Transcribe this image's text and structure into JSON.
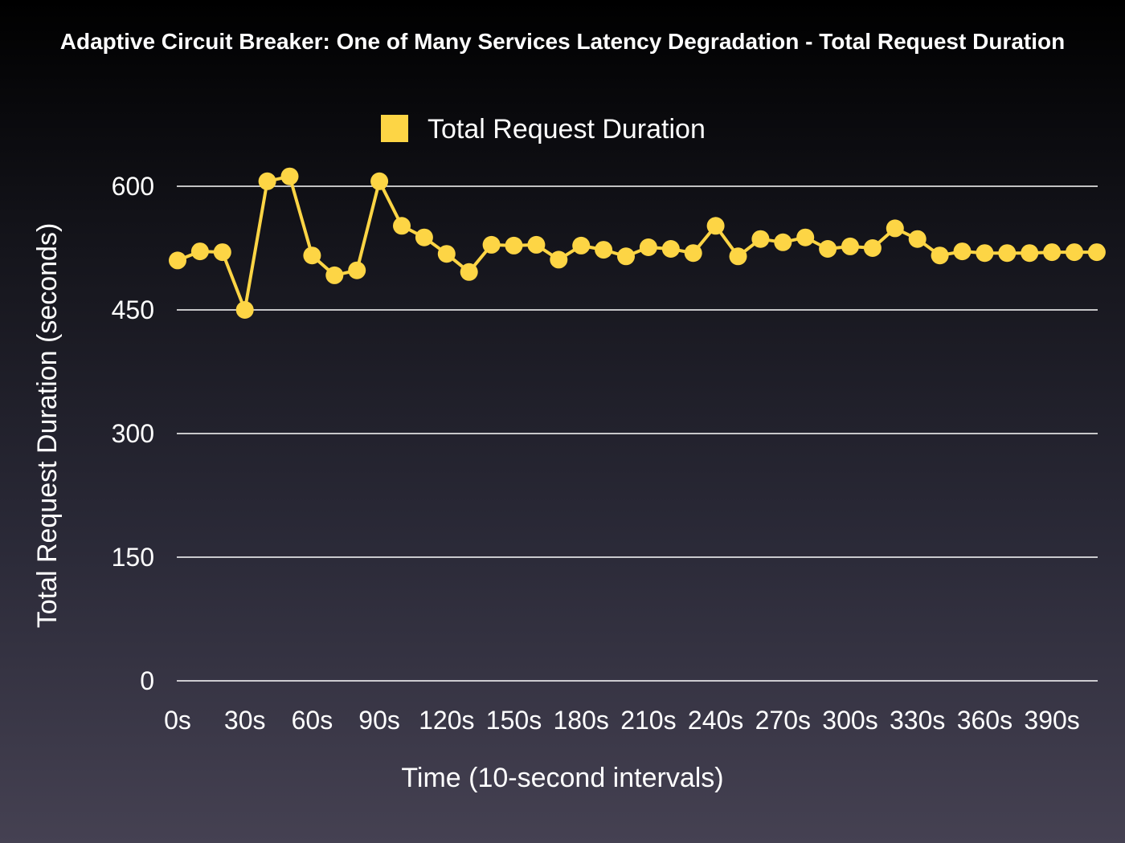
{
  "chart_data": {
    "type": "line",
    "title": "Adaptive Circuit Breaker: One of Many Services Latency Degradation - Total Request Duration",
    "xlabel": "Time (10-second intervals)",
    "ylabel": "Total Request Duration (seconds)",
    "ylim": [
      0,
      600
    ],
    "yticks": [
      "0",
      "150",
      "300",
      "450",
      "600"
    ],
    "ytick_values": [
      0,
      150,
      300,
      450,
      600
    ],
    "x": [
      "0s",
      "10s",
      "20s",
      "30s",
      "40s",
      "50s",
      "60s",
      "70s",
      "80s",
      "90s",
      "100s",
      "110s",
      "120s",
      "130s",
      "140s",
      "150s",
      "160s",
      "170s",
      "180s",
      "190s",
      "200s",
      "210s",
      "220s",
      "230s",
      "240s",
      "250s",
      "260s",
      "270s",
      "280s",
      "290s",
      "300s",
      "310s",
      "320s",
      "330s",
      "340s",
      "350s",
      "360s",
      "370s",
      "380s",
      "390s",
      "400s",
      "410s"
    ],
    "xtick_labels": [
      "0s",
      "30s",
      "60s",
      "90s",
      "120s",
      "150s",
      "180s",
      "210s",
      "240s",
      "270s",
      "300s",
      "330s",
      "360s",
      "390s"
    ],
    "xtick_indices": [
      0,
      3,
      6,
      9,
      12,
      15,
      18,
      21,
      24,
      27,
      30,
      33,
      36,
      39
    ],
    "grid": true,
    "legend_position": "top-center",
    "series": [
      {
        "name": "Total Request Duration",
        "color": "#fdd545",
        "values": [
          510,
          521,
          520,
          450,
          606,
          612,
          516,
          492,
          498,
          606,
          552,
          538,
          518,
          496,
          529,
          528,
          529,
          511,
          528,
          523,
          515,
          526,
          524,
          519,
          552,
          515,
          536,
          532,
          538,
          524,
          527,
          525,
          549,
          536,
          516,
          521,
          519,
          519,
          519,
          520,
          520,
          520
        ]
      }
    ]
  }
}
